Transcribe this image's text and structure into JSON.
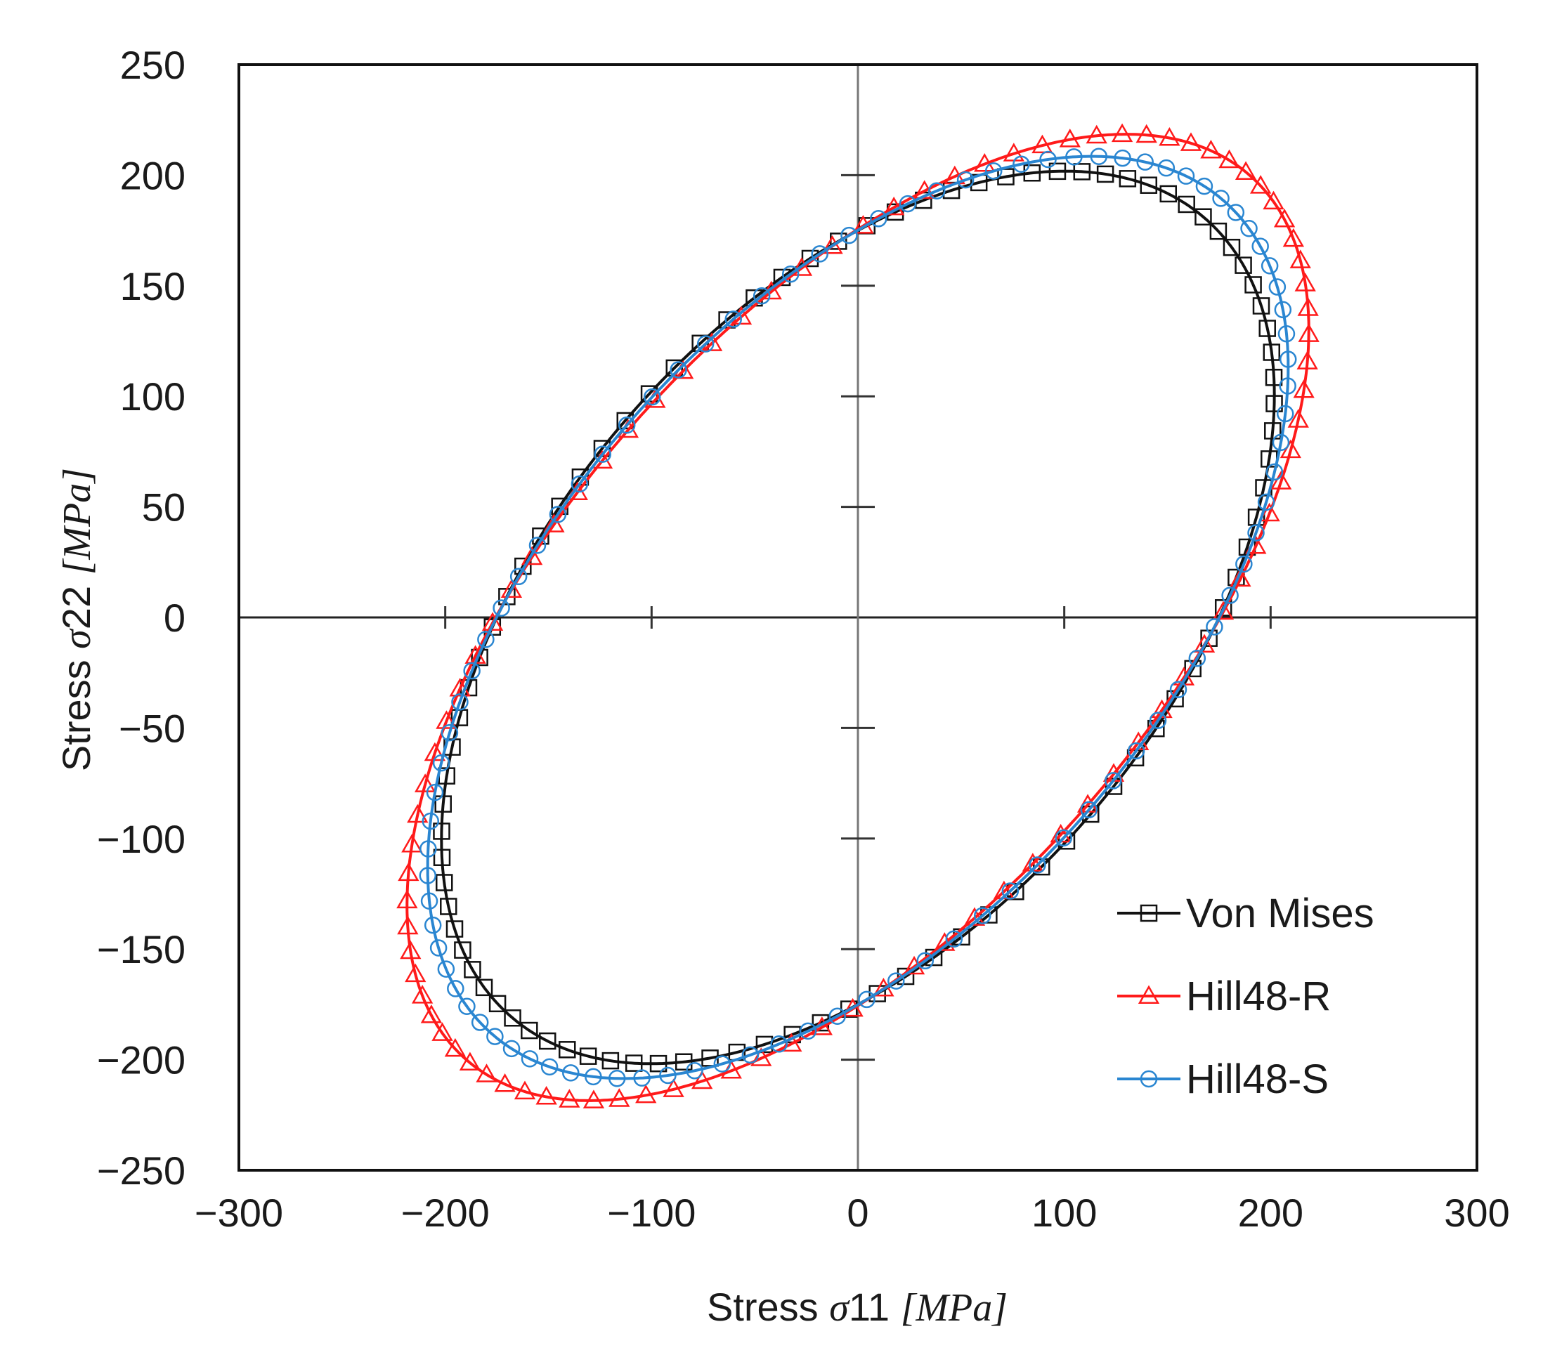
{
  "chart_data": {
    "type": "line",
    "title": "",
    "xlabel": {
      "prefix": "Stress ",
      "symbol": "σ",
      "suffix": "11 ",
      "unit": "[MPa]"
    },
    "ylabel": {
      "prefix": "Stress ",
      "symbol": "σ",
      "suffix": "22 ",
      "unit": "[MPa]"
    },
    "xlim": [
      -300,
      300
    ],
    "ylim": [
      -250,
      250
    ],
    "x_ticks": [
      -300,
      -200,
      -100,
      0,
      100,
      200,
      300
    ],
    "y_ticks": [
      -250,
      -200,
      -150,
      -100,
      -50,
      0,
      50,
      100,
      150,
      200,
      250
    ],
    "x_tick_labels": [
      "−300",
      "−200",
      "−100",
      "0",
      "100",
      "200",
      "300"
    ],
    "y_tick_labels": [
      "−250",
      "−200",
      "−150",
      "−100",
      "−50",
      "0",
      "50",
      "100",
      "150",
      "200",
      "250"
    ],
    "grid": false,
    "legend_position": "bottom-right",
    "series": [
      {
        "name": "Von Mises",
        "color": "#111111",
        "marker": "square",
        "shape": "ellipse",
        "center": [
          0,
          0
        ],
        "semi_major": 247,
        "semi_minor": 143,
        "major_axis_angle_deg": 45,
        "x_intercepts": [
          -153,
          153
        ],
        "y_intercepts": [
          -153,
          153
        ],
        "max_sigma11": 176,
        "max_sigma22": 176,
        "marker_count": 92
      },
      {
        "name": "Hill48-R",
        "color": "#ff1a1a",
        "marker": "triangle",
        "shape": "ellipse",
        "center": [
          0,
          0
        ],
        "semi_major": 276,
        "semi_minor": 139,
        "major_axis_angle_deg": 45,
        "x_intercepts": [
          -156,
          156
        ],
        "y_intercepts": [
          -156,
          156
        ],
        "max_sigma11": 200,
        "max_sigma22": 196,
        "marker_count": 92
      },
      {
        "name": "Hill48-S",
        "color": "#2a86d1",
        "marker": "circle",
        "shape": "ellipse",
        "center": [
          0,
          0
        ],
        "semi_major": 259,
        "semi_minor": 141,
        "major_axis_angle_deg": 45,
        "x_intercepts": [
          -155,
          155
        ],
        "y_intercepts": [
          -155,
          155
        ],
        "max_sigma11": 187,
        "max_sigma22": 186,
        "marker_count": 92
      }
    ]
  }
}
